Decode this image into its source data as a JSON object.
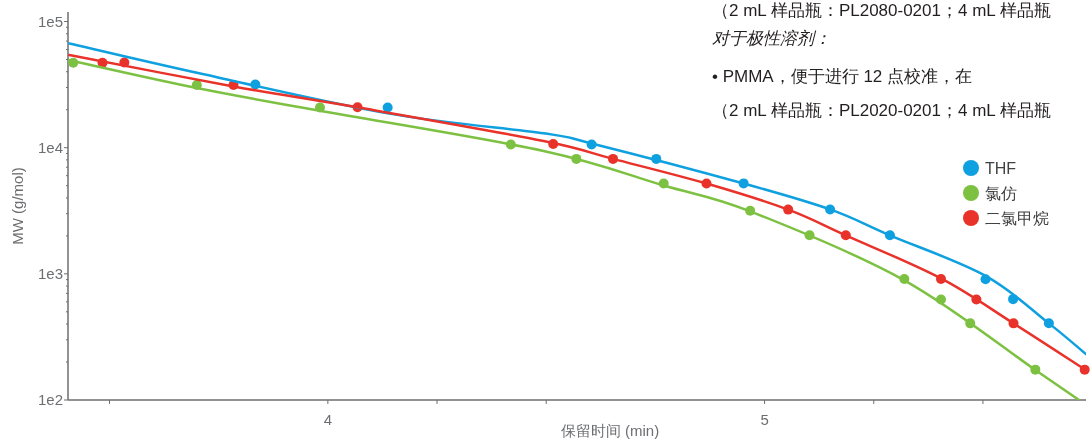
{
  "chart_data": {
    "type": "scatter",
    "xlabel": "保留时间 (min)",
    "ylabel": "MW (g/mol)",
    "log": "y",
    "xlim": [
      3.405,
      5.736
    ],
    "ylim": [
      100,
      119000
    ],
    "xticks": [
      {
        "value": 3.5,
        "label": null
      },
      4,
      {
        "value": 4.25,
        "label": null
      },
      {
        "value": 4.5,
        "label": null
      },
      5,
      {
        "value": 5.25,
        "label": null
      },
      {
        "value": 5.5,
        "label": null
      }
    ],
    "yticks": [
      {
        "value": 100,
        "label": "1e2"
      },
      {
        "value": 200,
        "label": null
      },
      {
        "value": 300,
        "label": null
      },
      {
        "value": 400,
        "label": null
      },
      {
        "value": 500,
        "label": null
      },
      {
        "value": 600,
        "label": null
      },
      {
        "value": 700,
        "label": null
      },
      {
        "value": 800,
        "label": null
      },
      {
        "value": 900,
        "label": null
      },
      {
        "value": 1000,
        "label": "1e3"
      },
      {
        "value": 2000,
        "label": null
      },
      {
        "value": 3000,
        "label": null
      },
      {
        "value": 4000,
        "label": null
      },
      {
        "value": 5000,
        "label": null
      },
      {
        "value": 6000,
        "label": null
      },
      {
        "value": 7000,
        "label": null
      },
      {
        "value": 8000,
        "label": null
      },
      {
        "value": 9000,
        "label": null
      },
      {
        "value": 10000,
        "label": "1e4"
      },
      {
        "value": 20000,
        "label": null
      },
      {
        "value": 30000,
        "label": null
      },
      {
        "value": 40000,
        "label": null
      },
      {
        "value": 50000,
        "label": null
      },
      {
        "value": 60000,
        "label": null
      },
      {
        "value": 70000,
        "label": null
      },
      {
        "value": 80000,
        "label": null
      },
      {
        "value": 90000,
        "label": null
      },
      {
        "value": 100000,
        "label": "1e5"
      }
    ],
    "grid": false,
    "legend": "right",
    "marker": "circle",
    "series": [
      {
        "name": "THF",
        "color": "#0fa0e0",
        "x": [
          3.834,
          4.137,
          4.604,
          4.752,
          4.952,
          5.15,
          5.287,
          5.506,
          5.569,
          5.651
        ],
        "values": [
          31700,
          20800,
          10600,
          8150,
          5210,
          3240,
          2020,
          906,
          630,
          406
        ]
      },
      {
        "name": "氯仿",
        "color": "#7dc142",
        "x": [
          3.417,
          3.7,
          3.982,
          4.419,
          4.569,
          4.769,
          4.967,
          5.103,
          5.32,
          5.404,
          5.471,
          5.62
        ],
        "values": [
          47200,
          31400,
          20800,
          10600,
          8150,
          5200,
          3160,
          2020,
          910,
          626,
          405,
          174
        ]
      },
      {
        "name": "二氯甲烷",
        "color": "#e8322a",
        "x": [
          3.484,
          3.534,
          3.784,
          4.068,
          4.516,
          4.653,
          4.867,
          5.054,
          5.186,
          5.404,
          5.485,
          5.57,
          5.733
        ],
        "values": [
          47200,
          47400,
          31400,
          20900,
          10700,
          8150,
          5200,
          3230,
          2020,
          910,
          626,
          405,
          174
        ]
      },
      {
        "type": "line",
        "color": "#0fa0e0",
        "marker": "none",
        "x": [
          3.408,
          3.708,
          4.137,
          4.494,
          4.604,
          4.952,
          5.15,
          5.287,
          5.506,
          5.651,
          5.736
        ],
        "values": [
          67000,
          38700,
          18700,
          13000,
          10800,
          5200,
          3240,
          2020,
          964,
          405,
          231
        ]
      },
      {
        "type": "line",
        "color": "#7dc142",
        "marker": "none",
        "x": [
          3.408,
          3.7,
          3.982,
          4.494,
          4.769,
          4.967,
          5.32,
          5.62,
          5.72
        ],
        "values": [
          49300,
          29700,
          19600,
          9420,
          5020,
          3130,
          889,
          173,
          100
        ]
      },
      {
        "type": "line",
        "color": "#e8322a",
        "marker": "none",
        "x": [
          3.408,
          3.784,
          4.068,
          4.494,
          4.653,
          4.867,
          5.054,
          5.186,
          5.404,
          5.57,
          5.733
        ],
        "values": [
          54200,
          30600,
          20900,
          11300,
          8150,
          5200,
          3230,
          2020,
          920,
          405,
          175
        ]
      }
    ],
    "annotations": [
      "（2 mL 样品瓶：PL2080-0201；4 mL 样品瓶",
      "对于极性溶剂：",
      "• PMMA，便于进行 12 点校准，在",
      "（2 mL 样品瓶：PL2020-0201；4 mL 样品瓶"
    ]
  }
}
